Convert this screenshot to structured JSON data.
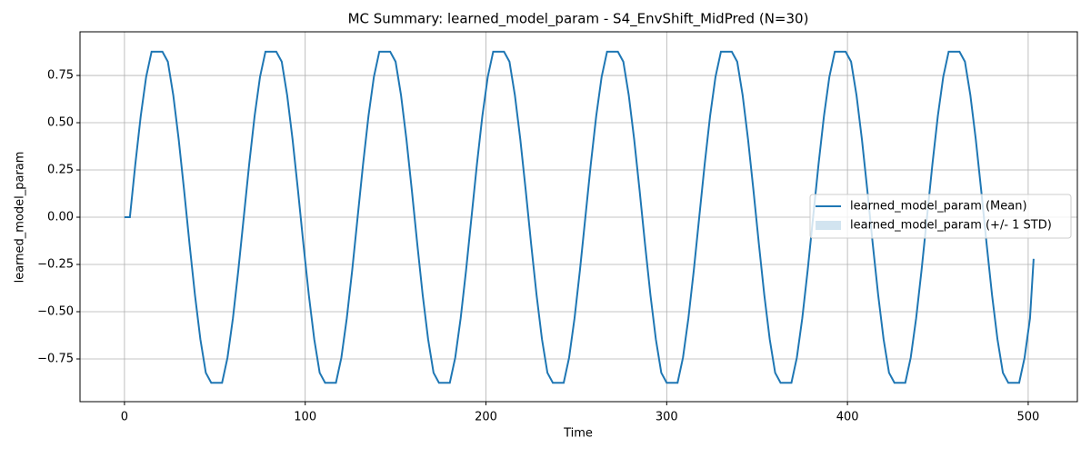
{
  "chart_data": {
    "type": "line",
    "title": "MC Summary: learned_model_param - S4_EnvShift_MidPred (N=30)",
    "x_label": "Time",
    "y_label": "learned_model_param",
    "x": [
      0,
      3,
      6,
      9,
      12,
      15,
      18,
      21,
      24,
      27,
      30,
      33,
      36,
      39,
      42,
      45,
      48,
      51,
      54,
      57,
      60,
      63,
      66,
      69,
      72,
      75,
      78,
      81,
      84,
      87,
      90,
      93,
      96,
      99,
      102,
      105,
      108,
      111,
      114,
      117,
      120,
      123,
      126,
      129,
      132,
      135,
      138,
      141,
      144,
      147,
      150,
      153,
      156,
      159,
      162,
      165,
      168,
      171,
      174,
      177,
      180,
      183,
      186,
      189,
      192,
      195,
      198,
      201,
      204,
      207,
      210,
      213,
      216,
      219,
      222,
      225,
      228,
      231,
      234,
      237,
      240,
      243,
      246,
      249,
      252,
      255,
      258,
      261,
      264,
      267,
      270,
      273,
      276,
      279,
      282,
      285,
      288,
      291,
      294,
      297,
      300,
      303,
      306,
      309,
      312,
      315,
      318,
      321,
      324,
      327,
      330,
      333,
      336,
      339,
      342,
      345,
      348,
      351,
      354,
      357,
      360,
      363,
      366,
      369,
      372,
      375,
      378,
      381,
      384,
      387,
      390,
      393,
      396,
      399,
      402,
      405,
      408,
      411,
      414,
      417,
      420,
      423,
      426,
      429,
      432,
      435,
      438,
      441,
      444,
      447,
      450,
      453,
      456,
      459,
      462,
      465,
      468,
      471,
      474,
      477,
      480,
      483,
      486,
      489,
      492,
      495,
      498,
      501,
      503
    ],
    "series": [
      {
        "name": "learned_model_param (Mean)",
        "color": "#1f77b4",
        "values": [
          0,
          0,
          0.28,
          0.535,
          0.743,
          0.876,
          0.876,
          0.876,
          0.823,
          0.646,
          0.412,
          0.142,
          -0.142,
          -0.412,
          -0.646,
          -0.823,
          -0.876,
          -0.876,
          -0.876,
          -0.743,
          -0.535,
          -0.28,
          0,
          0.28,
          0.535,
          0.743,
          0.876,
          0.876,
          0.876,
          0.823,
          0.646,
          0.412,
          0.142,
          -0.142,
          -0.412,
          -0.646,
          -0.823,
          -0.876,
          -0.876,
          -0.876,
          -0.743,
          -0.535,
          -0.28,
          0,
          0.28,
          0.535,
          0.743,
          0.876,
          0.876,
          0.876,
          0.823,
          0.646,
          0.412,
          0.142,
          -0.142,
          -0.412,
          -0.646,
          -0.823,
          -0.876,
          -0.876,
          -0.876,
          -0.743,
          -0.535,
          -0.28,
          0,
          0.28,
          0.535,
          0.743,
          0.876,
          0.876,
          0.876,
          0.823,
          0.646,
          0.412,
          0.142,
          -0.142,
          -0.412,
          -0.646,
          -0.823,
          -0.876,
          -0.876,
          -0.876,
          -0.743,
          -0.535,
          -0.28,
          0,
          0.28,
          0.535,
          0.743,
          0.876,
          0.876,
          0.876,
          0.823,
          0.646,
          0.412,
          0.142,
          -0.142,
          -0.412,
          -0.646,
          -0.823,
          -0.876,
          -0.876,
          -0.876,
          -0.743,
          -0.535,
          -0.28,
          0,
          0.28,
          0.535,
          0.743,
          0.876,
          0.876,
          0.876,
          0.823,
          0.646,
          0.412,
          0.142,
          -0.142,
          -0.412,
          -0.646,
          -0.823,
          -0.876,
          -0.876,
          -0.876,
          -0.743,
          -0.535,
          -0.28,
          0,
          0.28,
          0.535,
          0.743,
          0.876,
          0.876,
          0.876,
          0.823,
          0.646,
          0.412,
          0.142,
          -0.142,
          -0.412,
          -0.646,
          -0.823,
          -0.876,
          -0.876,
          -0.876,
          -0.743,
          -0.535,
          -0.28,
          0,
          0.28,
          0.535,
          0.743,
          0.876,
          0.876,
          0.876,
          0.823,
          0.646,
          0.412,
          0.142,
          -0.142,
          -0.412,
          -0.646,
          -0.823,
          -0.876,
          -0.876,
          -0.876,
          -0.743,
          -0.535,
          -0.22
        ]
      }
    ],
    "band": {
      "name": "learned_model_param (+/- 1 STD)",
      "color": "#1f77b4"
    },
    "xlim": [
      -24.6,
      527.2
    ],
    "ylim": [
      -0.976,
      0.981
    ],
    "xticks": [
      0,
      100,
      200,
      300,
      400,
      500
    ],
    "yticks": [
      {
        "value": -0.75,
        "label": "−0.75"
      },
      {
        "value": -0.5,
        "label": "−0.50"
      },
      {
        "value": -0.25,
        "label": "−0.25"
      },
      {
        "value": 0,
        "label": "0.00"
      },
      0.25,
      {
        "value": 0.5,
        "label": "0.50"
      },
      0.75
    ],
    "grid": true,
    "legend": "center right"
  }
}
